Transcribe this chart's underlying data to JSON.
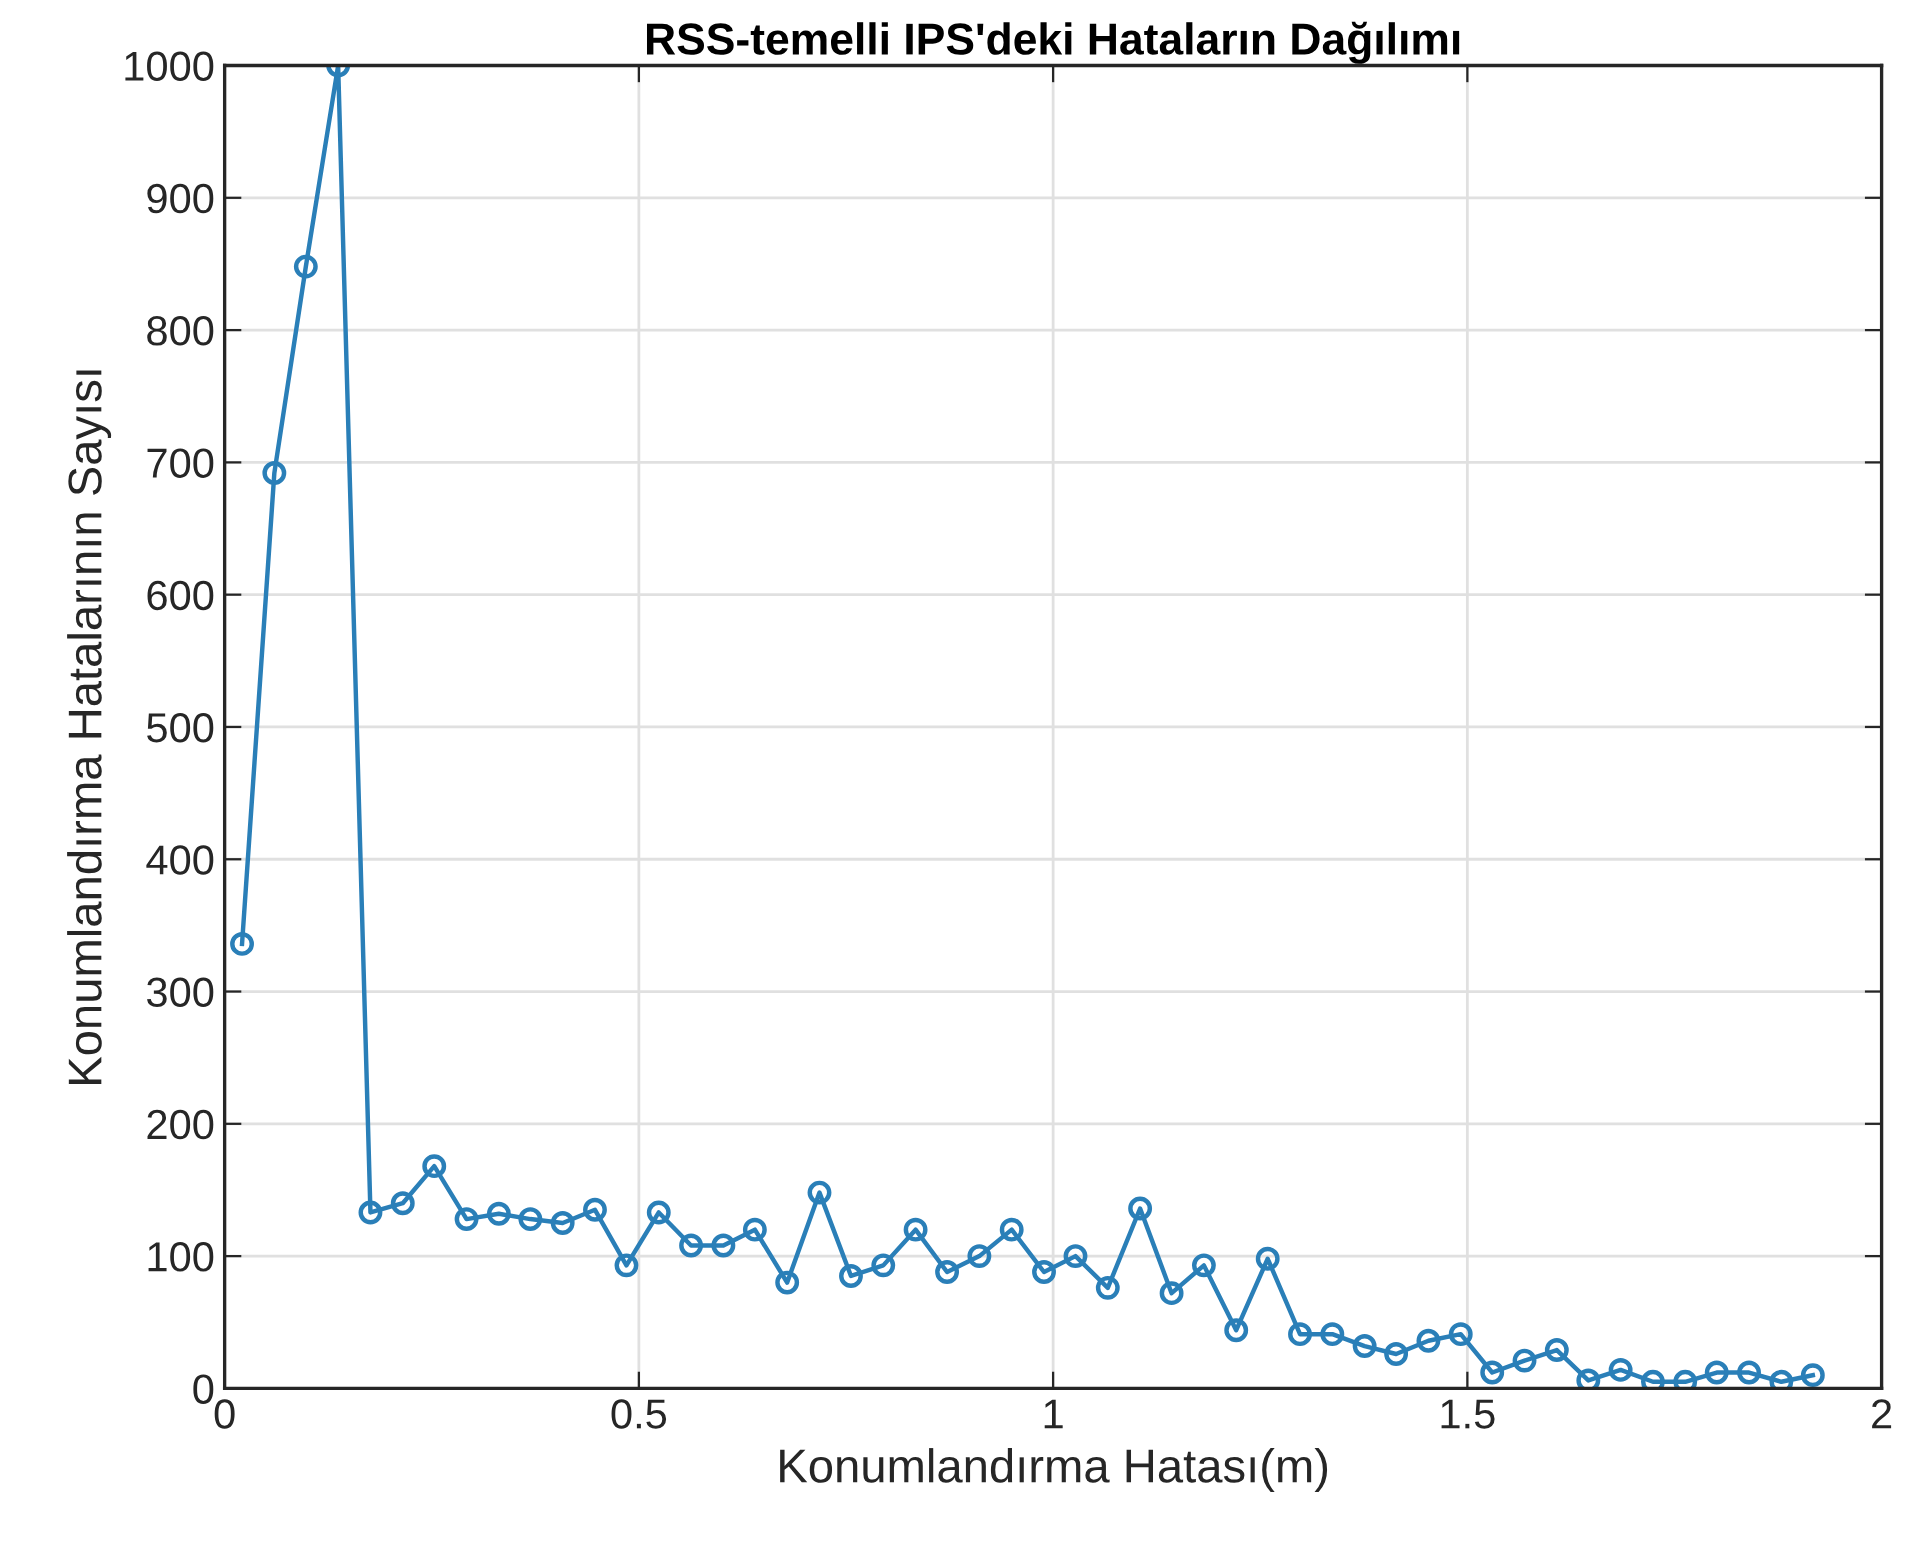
{
  "chart_data": {
    "type": "line",
    "title": "RSS-temelli IPS'deki Hataların Dağılımı",
    "xlabel": "Konumlandırma Hatası(m)",
    "ylabel": "Konumlandırma Hatalarının Sayısı",
    "x": [
      0.021,
      0.06,
      0.098,
      0.137,
      0.176,
      0.215,
      0.253,
      0.292,
      0.331,
      0.369,
      0.408,
      0.447,
      0.485,
      0.524,
      0.563,
      0.602,
      0.64,
      0.679,
      0.718,
      0.756,
      0.795,
      0.834,
      0.872,
      0.911,
      0.95,
      0.989,
      1.027,
      1.066,
      1.105,
      1.143,
      1.182,
      1.221,
      1.259,
      1.298,
      1.337,
      1.376,
      1.414,
      1.453,
      1.492,
      1.53,
      1.569,
      1.608,
      1.646,
      1.685,
      1.724,
      1.763,
      1.801,
      1.84,
      1.879,
      1.917
    ],
    "series": [
      {
        "color": "#2a7fb8",
        "values": [
          336,
          692,
          848,
          1000,
          133,
          140,
          168,
          128,
          132,
          128,
          125,
          135,
          93,
          133,
          108,
          108,
          120,
          80,
          148,
          85,
          93,
          120,
          88,
          100,
          120,
          88,
          100,
          76,
          136,
          72,
          93,
          44,
          98,
          41,
          41,
          32,
          26,
          36,
          41,
          12,
          21,
          29,
          6,
          14,
          5,
          5,
          12,
          12,
          5,
          10
        ]
      }
    ],
    "xlim": [
      0,
      2
    ],
    "xticks": [
      0,
      0.5,
      1,
      1.5,
      2
    ],
    "ylim": [
      0,
      1000
    ],
    "yticks": [
      0,
      100,
      200,
      300,
      400,
      500,
      600,
      700,
      800,
      900,
      1000
    ],
    "grid": true,
    "marker": "circle",
    "line_style": "solid"
  }
}
